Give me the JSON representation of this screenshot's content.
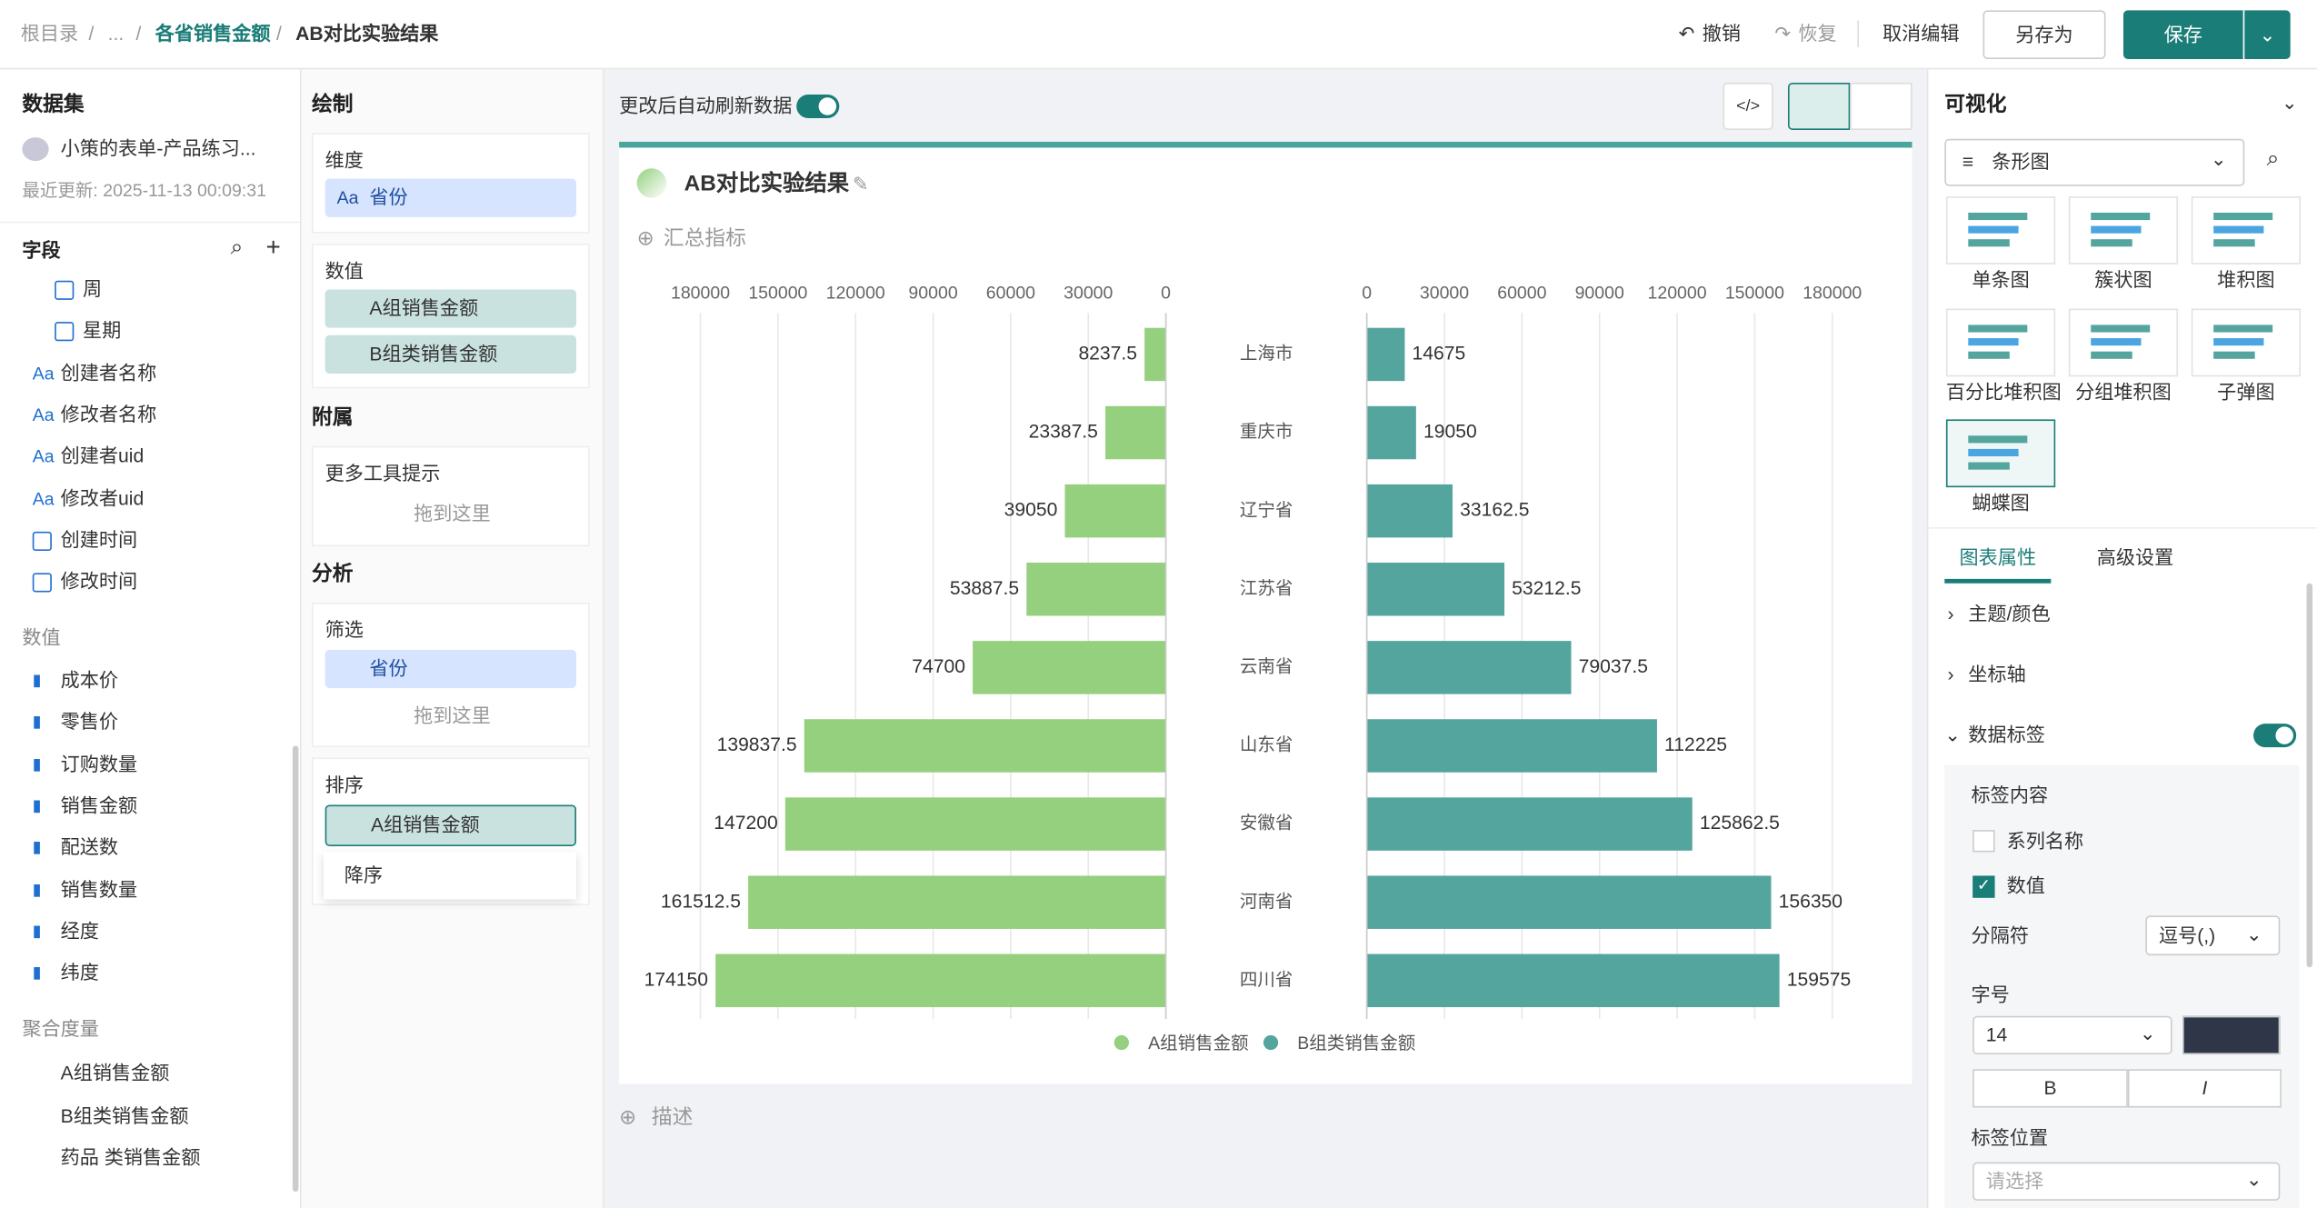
{
  "breadcrumb": [
    "根目录",
    "...",
    "各省销售金额",
    "AB对比实验结果"
  ],
  "toolbar": {
    "undo": "撤销",
    "redo": "恢复",
    "cancel": "取消编辑",
    "save_as": "另存为",
    "save": "保存"
  },
  "dataset": {
    "title": "数据集",
    "name": "小策的表单-产品练习...",
    "updated": "最近更新: 2025-11-13 00:09:31",
    "fields_title": "字段",
    "text_icon": "Aa",
    "dimensions": [
      "周",
      "星期",
      "创建者名称",
      "修改者名称",
      "创建者uid",
      "修改者uid",
      "创建时间",
      "修改时间"
    ],
    "measures_title": "数值",
    "measures": [
      "成本价",
      "零售价",
      "订购数量",
      "销售金额",
      "配送数",
      "销售数量",
      "经度",
      "纬度"
    ],
    "agg_title": "聚合度量",
    "agg": [
      "A组销售金额",
      "B组类销售金额",
      "药品 类销售金额"
    ]
  },
  "config": {
    "draw": "绘制",
    "dimension": "维度",
    "dimension_field": "省份",
    "value": "数值",
    "value_fields": [
      "A组销售金额",
      "B组类销售金额"
    ],
    "attach": "附属",
    "tooltip": "更多工具提示",
    "drop": "拖到这里",
    "analysis": "分析",
    "filter": "筛选",
    "filter_field": "省份",
    "sort": "排序",
    "sort_field": "A组销售金额",
    "sort_option": "降序"
  },
  "canvas": {
    "auto_refresh": "更改后自动刷新数据",
    "summary": "汇总指标",
    "describe": "描述"
  },
  "chart_data": {
    "type": "butterfly",
    "title": "AB对比实验结果",
    "categories": [
      "上海市",
      "重庆市",
      "辽宁省",
      "江苏省",
      "云南省",
      "山东省",
      "安徽省",
      "河南省",
      "四川省"
    ],
    "series": [
      {
        "name": "A组销售金额",
        "color": "#95d07e",
        "values": [
          8237.5,
          23387.5,
          39050,
          53887.5,
          74700,
          139837.5,
          147200,
          161512.5,
          174150
        ]
      },
      {
        "name": "B组类销售金额",
        "color": "#55a59f",
        "values": [
          14675,
          19050,
          33162.5,
          53212.5,
          79037.5,
          112225,
          125862.5,
          156350,
          159575
        ]
      }
    ],
    "xlim": [
      0,
      180000
    ],
    "xticks": [
      0,
      30000,
      60000,
      90000,
      120000,
      150000,
      180000
    ],
    "grid": true,
    "legend": "bottom"
  },
  "visual": {
    "title": "可视化",
    "chart_type": "条形图",
    "types": [
      "单条图",
      "簇状图",
      "堆积图",
      "百分比堆积图",
      "分组堆积图",
      "子弹图",
      "蝴蝶图"
    ],
    "tabs": [
      "图表属性",
      "高级设置"
    ],
    "sections": [
      "主题/颜色",
      "坐标轴",
      "数据标签"
    ],
    "label_content": "标签内容",
    "series_name": "系列名称",
    "value": "数值",
    "separator": "分隔符",
    "separator_value": "逗号(,)",
    "font_size": "字号",
    "font_size_value": "14",
    "bold": "B",
    "italic": "I",
    "label_position": "标签位置",
    "placeholder": "请选择"
  }
}
